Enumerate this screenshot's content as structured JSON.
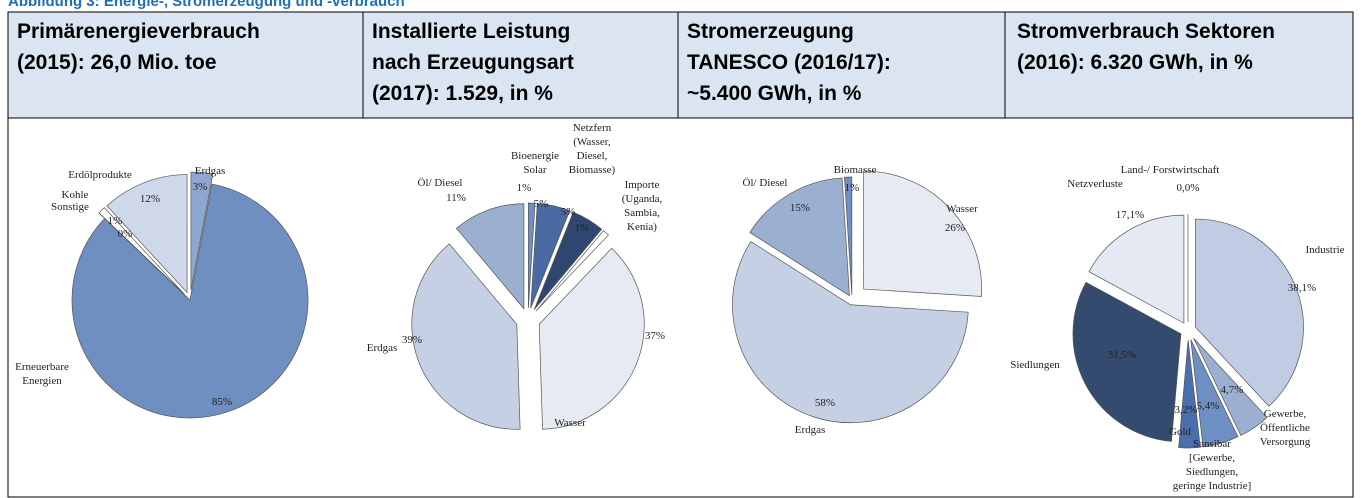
{
  "caption": "Abbildung 3: Energie-, Stromerzeugung und -verbrauch",
  "chart_data": [
    {
      "type": "pie",
      "title": [
        "Primärenergieverbrauch",
        "(2015): 26,0 Mio. toe"
      ],
      "labels": [
        [
          "Erdgas"
        ],
        [
          "Erneuerbare",
          "Energien"
        ],
        [
          "Sonstige"
        ],
        [
          "Kohle"
        ],
        [
          "Erdölprodukte"
        ]
      ],
      "values": [
        3,
        85,
        0,
        1,
        12
      ],
      "value_labels": [
        "3%",
        "85%",
        "0%",
        "1%",
        "12%"
      ],
      "colors": [
        "#8ea7d1",
        "#6f8fc0",
        "#4a6fa8",
        "#ffffff",
        "#cfd8ea"
      ]
    },
    {
      "type": "pie",
      "title": [
        "Installierte Leistung",
        "nach Erzeugungsart",
        "(2017): 1.529, in %"
      ],
      "labels": [
        [
          "Bioenergie"
        ],
        [
          "Solar"
        ],
        [
          "Netzfern",
          "(Wasser,",
          "Diesel,",
          "Biomasse)"
        ],
        [
          "Importe",
          "(Uganda,",
          "Sambia,",
          "Kenia)"
        ],
        [
          "Wasser"
        ],
        [
          "Erdgas"
        ],
        [
          "Öl/ Diesel"
        ]
      ],
      "values": [
        1,
        5,
        5,
        1,
        37,
        39,
        11
      ],
      "value_labels": [
        "1%",
        "5%",
        "5%",
        "1%",
        "37%",
        "39%",
        "11%"
      ],
      "colors": [
        "#6f8fc4",
        "#4a6aa3",
        "#2f4770",
        "#ffffff",
        "#e6eaf3",
        "#c6d0e5",
        "#9bafd1"
      ]
    },
    {
      "type": "pie",
      "title": [
        "Stromerzeugung",
        "TANESCO (2016/17):",
        "~5.400 GWh, in %"
      ],
      "labels": [
        [
          "Wasser"
        ],
        [
          "Erdgas"
        ],
        [
          "Öl/ Diesel"
        ],
        [
          "Biomasse"
        ]
      ],
      "values": [
        26,
        58,
        15,
        1
      ],
      "value_labels": [
        "26%",
        "58%",
        "15%",
        "1%"
      ],
      "colors": [
        "#e6eaf3",
        "#c6d0e5",
        "#9bafd1",
        "#6f8fc4"
      ]
    },
    {
      "type": "pie",
      "title": [
        "Stromverbrauch Sektoren",
        "(2016): 6.320 GWh, in %"
      ],
      "labels": [
        [
          "Land-/ Forstwirtschaft"
        ],
        [
          "Industrie"
        ],
        [
          "Gewerbe,",
          "Öffentliche",
          "Versorgung"
        ],
        [
          "Sansibar",
          "[Gewerbe,",
          "Siedlungen,",
          "geringe Industrie]"
        ],
        [
          "Gold"
        ],
        [
          "Siedlungen"
        ],
        [
          "Netzverluste"
        ]
      ],
      "values": [
        0,
        38.1,
        4.7,
        5.4,
        3.2,
        31.5,
        17.1
      ],
      "value_labels": [
        "0,0%",
        "38,1%",
        "4,7%",
        "5,4%",
        "3,2%",
        "31,5%",
        "17,1%"
      ],
      "colors": [
        "#ffffff",
        "#bfcce3",
        "#9aafd2",
        "#6d8fc3",
        "#4a6fad",
        "#344a6e",
        "#e4e9f3"
      ]
    }
  ]
}
